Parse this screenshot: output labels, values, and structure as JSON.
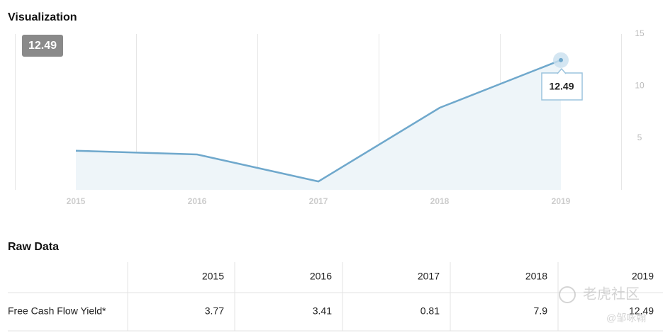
{
  "header": {
    "title": "Visualization"
  },
  "chart_data": {
    "type": "line",
    "categories": [
      "2015",
      "2016",
      "2017",
      "2018",
      "2019"
    ],
    "values": [
      3.77,
      3.41,
      0.81,
      7.9,
      12.49
    ],
    "color": "#6fa8cc",
    "fill": "#eef5f9",
    "ylim": [
      0,
      15
    ],
    "yticks": [
      5,
      10,
      15
    ]
  },
  "raw_data": {
    "title": "Raw Data",
    "row_label": "Free Cash Flow Yield*"
  },
  "watermark": {
    "brand": "老虎社区",
    "author": "@邹咏翰"
  }
}
